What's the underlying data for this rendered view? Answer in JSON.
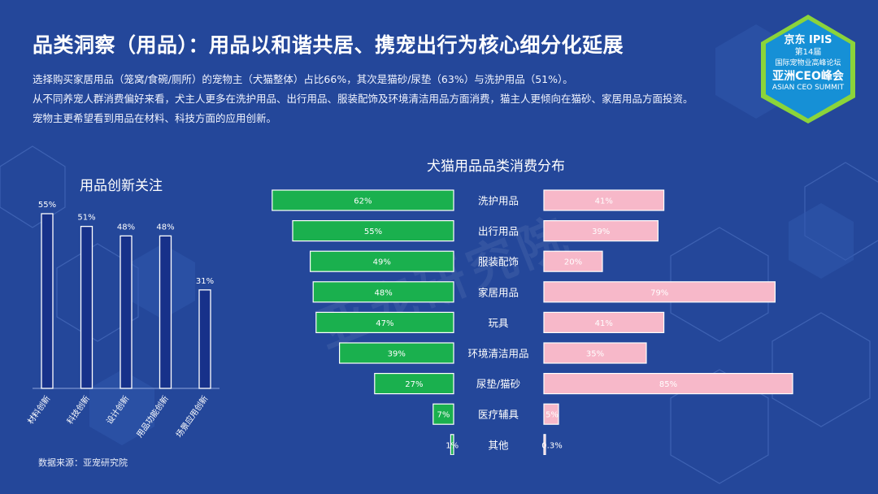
{
  "title": "品类洞察（用品）：用品以和谐共居、携宠出行为核心细分化延展",
  "intro": [
    "选择购买家居用品（笼窝/食碗/厕所）的宠物主（犬猫整体）占比66%，其次是猫砂/尿垫（63%）与洗护用品（51%）。",
    "从不同养宠人群消费偏好来看，犬主人更多在洗护用品、出行用品、服装配饰及环境清洁用品方面消费，猫主人更倾向在猫砂、家居用品方面投资。",
    "宠物主更希望看到用品在材料、科技方面的应用创新。"
  ],
  "badge": {
    "brand": "京东",
    "brand2": "IPIS",
    "edition": "第14届",
    "line1": "国际宠物业高峰论坛",
    "line2": "亚洲CEO峰会",
    "line3": "ASIAN CEO SUMMIT"
  },
  "watermark": "亚宠研究院",
  "source": "数据来源：亚宠研究院",
  "colors": {
    "background": "#24479a",
    "left_bar": "#17318a",
    "left_bar_border": "#ffffff",
    "dog_bar": "#1ab04e",
    "cat_bar": "#f7b8c9",
    "badge_green": "#8bd43a"
  },
  "chart_data": [
    {
      "type": "bar",
      "title": "用品创新关注",
      "categories": [
        "材料创新",
        "科技创新",
        "设计创新",
        "用品功能创新",
        "场景应用创新"
      ],
      "values": [
        55,
        51,
        48,
        48,
        31
      ],
      "value_labels": [
        "55%",
        "51%",
        "48%",
        "48%",
        "31%"
      ],
      "unit": "%",
      "ylim": [
        0,
        60
      ],
      "grid": false
    },
    {
      "type": "bar",
      "orientation": "horizontal-butterfly",
      "title": "犬猫用品品类消费分布",
      "categories": [
        "洗护用品",
        "出行用品",
        "服装配饰",
        "家居用品",
        "玩具",
        "环境清洁用品",
        "尿垫/猫砂",
        "医疗辅具",
        "其他"
      ],
      "series": [
        {
          "values": [
            62,
            55,
            49,
            48,
            47,
            39,
            27,
            7,
            1
          ],
          "labels": [
            "62%",
            "55%",
            "49%",
            "48%",
            "47%",
            "39%",
            "27%",
            "7%",
            "1%"
          ],
          "color": "#1ab04e",
          "direction": "left"
        },
        {
          "values": [
            41,
            39,
            20,
            79,
            41,
            35,
            85,
            5,
            0.3
          ],
          "labels": [
            "41%",
            "39%",
            "20%",
            "79%",
            "41%",
            "35%",
            "85%",
            "5%",
            "0.3%"
          ],
          "color": "#f7b8c9",
          "direction": "right"
        }
      ],
      "unit": "%",
      "grid": false
    }
  ]
}
